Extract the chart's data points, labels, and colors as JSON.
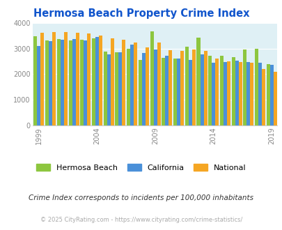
{
  "title": "Hermosa Beach Property Crime Index",
  "years": [
    1999,
    2000,
    2001,
    2002,
    2003,
    2004,
    2005,
    2006,
    2007,
    2008,
    2009,
    2010,
    2011,
    2012,
    2013,
    2014,
    2015,
    2016,
    2017,
    2018,
    2019
  ],
  "hermosa_beach": [
    3490,
    3310,
    3360,
    3330,
    3350,
    3400,
    2870,
    2860,
    3000,
    2560,
    3680,
    2650,
    2620,
    3070,
    3430,
    2730,
    2730,
    2670,
    2970,
    3000,
    2400
  ],
  "california": [
    3100,
    3300,
    3340,
    3360,
    3330,
    3450,
    2780,
    2850,
    3160,
    2840,
    2960,
    2720,
    2600,
    2560,
    2780,
    2460,
    2480,
    2520,
    2480,
    2440,
    2360
  ],
  "national": [
    3620,
    3650,
    3640,
    3630,
    3590,
    3510,
    3390,
    3350,
    3240,
    3060,
    3230,
    2930,
    2900,
    2960,
    2900,
    2600,
    2510,
    2480,
    2450,
    2210,
    2100
  ],
  "colors": {
    "hermosa_beach": "#8dc63f",
    "california": "#4a90d9",
    "national": "#f5a623"
  },
  "ylim": [
    0,
    4000
  ],
  "yticks": [
    0,
    1000,
    2000,
    3000,
    4000
  ],
  "xticks": [
    1999,
    2004,
    2009,
    2014,
    2019
  ],
  "background_color": "#dff0f5",
  "title_color": "#1155cc",
  "subtitle": "Crime Index corresponds to incidents per 100,000 inhabitants",
  "footer": "© 2025 CityRating.com - https://www.cityrating.com/crime-statistics/",
  "legend_labels": [
    "Hermosa Beach",
    "California",
    "National"
  ]
}
